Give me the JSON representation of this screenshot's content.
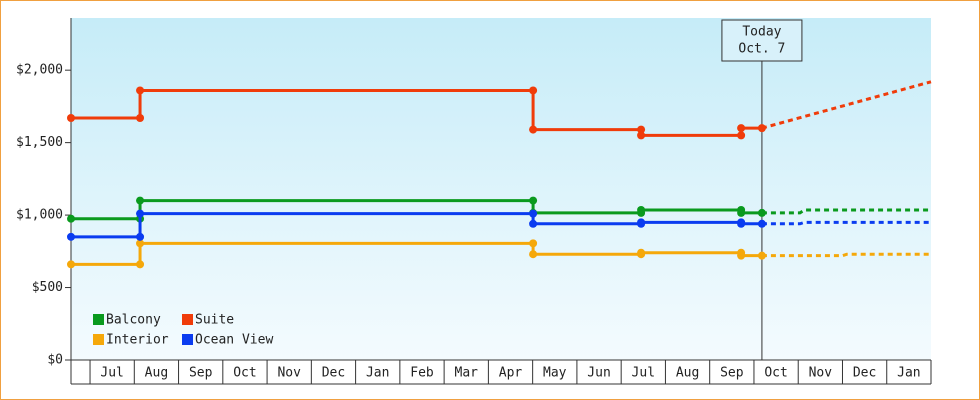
{
  "chart_data": {
    "type": "step-line",
    "ylim": [
      0,
      2360
    ],
    "yticks": [
      {
        "value": 0,
        "label": "$0"
      },
      {
        "value": 500,
        "label": "$500"
      },
      {
        "value": 1000,
        "label": "$1,000"
      },
      {
        "value": 1500,
        "label": "$1,500"
      },
      {
        "value": 2000,
        "label": "$2,000"
      }
    ],
    "xlim": [
      -0.43,
      19
    ],
    "categories": [
      "Jul",
      "Aug",
      "Sep",
      "Oct",
      "Nov",
      "Dec",
      "Jan",
      "Feb",
      "Mar",
      "Apr",
      "May",
      "Jun",
      "Jul",
      "Aug",
      "Sep",
      "Oct",
      "Nov",
      "Dec",
      "Jan"
    ],
    "today": {
      "x": 15.18,
      "label_lines": [
        "Today",
        "Oct. 7"
      ]
    },
    "series": [
      {
        "name": "Balcony",
        "color": "#0a9a1e",
        "x": [
          -0.43,
          1.13,
          1.13,
          10.01,
          10.01,
          12.45,
          12.45,
          14.71,
          14.71,
          15.18
        ],
        "values": [
          975,
          975,
          1100,
          1100,
          1015,
          1015,
          1035,
          1035,
          1015,
          1015
        ],
        "forecast_x": [
          15.18,
          16.04,
          16.14,
          19
        ],
        "forecast_values": [
          1015,
          1015,
          1035,
          1035
        ]
      },
      {
        "name": "Suite",
        "color": "#f03c0a",
        "x": [
          -0.43,
          1.13,
          1.13,
          10.01,
          10.01,
          12.45,
          12.45,
          14.71,
          14.71,
          15.18
        ],
        "values": [
          1670,
          1670,
          1860,
          1860,
          1590,
          1590,
          1550,
          1550,
          1600,
          1600
        ],
        "forecast_x": [
          15.18,
          19
        ],
        "forecast_values": [
          1600,
          1920
        ]
      },
      {
        "name": "Interior",
        "color": "#f5a80a",
        "x": [
          -0.43,
          1.13,
          1.13,
          10.01,
          10.01,
          12.45,
          12.45,
          14.71,
          14.71,
          15.18
        ],
        "values": [
          660,
          660,
          805,
          805,
          730,
          730,
          740,
          740,
          720,
          720
        ],
        "forecast_x": [
          15.18,
          17,
          17.1,
          19
        ],
        "forecast_values": [
          720,
          720,
          730,
          730
        ]
      },
      {
        "name": "Ocean View",
        "color": "#0a3cf0",
        "x": [
          -0.43,
          1.13,
          1.13,
          10.01,
          10.01,
          12.45,
          12.45,
          14.71,
          14.71,
          15.18
        ],
        "values": [
          850,
          850,
          1010,
          1010,
          940,
          940,
          950,
          950,
          940,
          940
        ],
        "forecast_x": [
          15.18,
          16.04,
          16.14,
          19
        ],
        "forecast_values": [
          940,
          940,
          950,
          950
        ]
      }
    ]
  }
}
